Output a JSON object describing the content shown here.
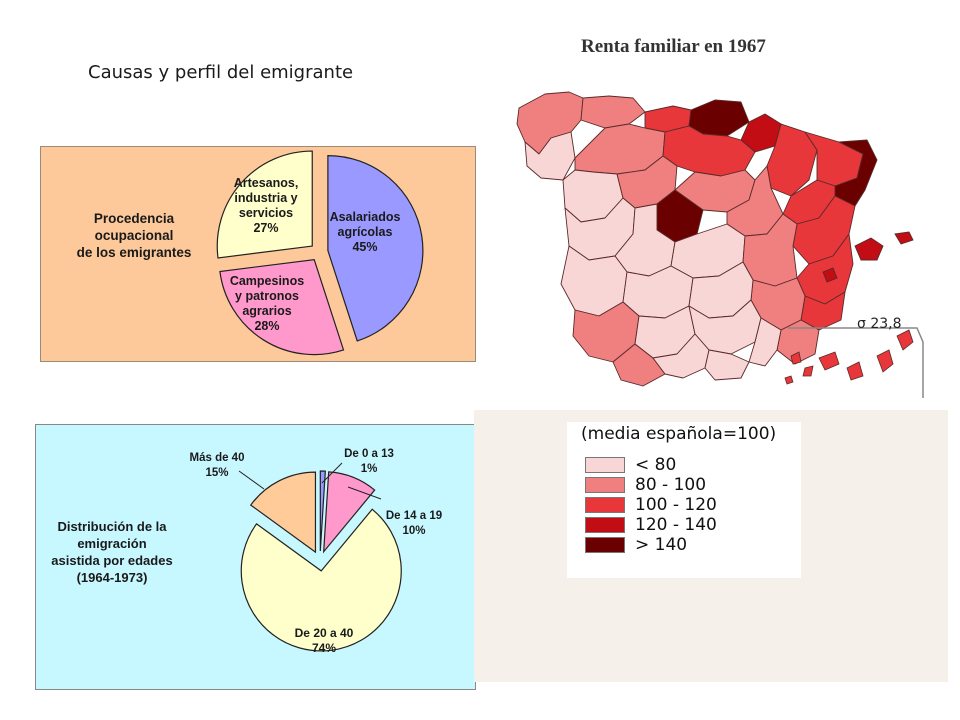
{
  "slide": {
    "title": "Causas y perfil del emigrante"
  },
  "chart_data": [
    {
      "type": "pie",
      "title": "Procedencia ocupacional de los emigrantes",
      "title_lines": [
        "Procedencia",
        "ocupacional",
        "de los emigrantes"
      ],
      "slices": [
        {
          "name": "Asalariados agrícolas",
          "label_lines": [
            "Asalariados",
            "agrícolas"
          ],
          "value": 45,
          "value_label": "45%",
          "color": "#9999ff"
        },
        {
          "name": "Campesinos y patronos agrarios",
          "label_lines": [
            "Campesinos",
            "y patronos",
            "agrarios"
          ],
          "value": 28,
          "value_label": "28%",
          "color": "#ff99cc"
        },
        {
          "name": "Artesanos, industria y servicios",
          "label_lines": [
            "Artesanos,",
            "industria y",
            "servicios"
          ],
          "value": 27,
          "value_label": "27%",
          "color": "#ffffcc"
        }
      ],
      "background": "#fdc99a",
      "exploded": true
    },
    {
      "type": "pie",
      "title": "Distribución de la emigración asistida por edades (1964-1973)",
      "title_lines": [
        "Distribución de la",
        "emigración",
        "asistida por edades",
        "(1964-1973)"
      ],
      "slices": [
        {
          "name": "De 0 a 13",
          "value": 1,
          "value_label": "1%",
          "color": "#9999ff"
        },
        {
          "name": "De 14 a 19",
          "value": 10,
          "value_label": "10%",
          "color": "#ff99cc"
        },
        {
          "name": "De 20 a 40",
          "value": 74,
          "value_label": "74%",
          "color": "#ffffcc"
        },
        {
          "name": "Más de 40",
          "value": 15,
          "value_label": "15%",
          "color": "#ffcc99"
        }
      ],
      "background": "#ccffff",
      "exploded": true
    }
  ],
  "map": {
    "title": "Renta familiar en 1967",
    "sigma_label": "σ 23,8",
    "legend": {
      "title": "(media española=100)",
      "items": [
        {
          "label": "< 80",
          "color": "#f9d6d6"
        },
        {
          "label": "80 - 100",
          "color": "#f08080"
        },
        {
          "label": "100 - 120",
          "color": "#e8373a"
        },
        {
          "label": "120 - 140",
          "color": "#c20d14"
        },
        {
          "label": "> 140",
          "color": "#6b0000"
        }
      ]
    }
  }
}
